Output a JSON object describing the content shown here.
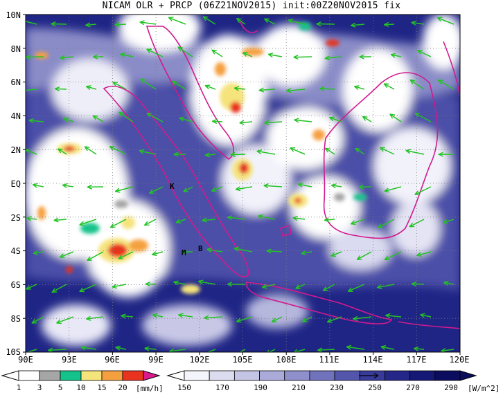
{
  "title": "NICAM OLR + PRCP (06Z21NOV2015) init:00Z20NOV2015 fix",
  "axes": {
    "lat_labels": [
      "10N",
      "8N",
      "6N",
      "4N",
      "2N",
      "EQ",
      "2S",
      "4S",
      "6S",
      "8S",
      "10S"
    ],
    "lat_values": [
      10,
      8,
      6,
      4,
      2,
      0,
      -2,
      -4,
      -6,
      -8,
      -10
    ],
    "lon_labels": [
      "90E",
      "93E",
      "96E",
      "99E",
      "102E",
      "105E",
      "108E",
      "111E",
      "114E",
      "117E",
      "120E"
    ],
    "lon_values": [
      90,
      93,
      96,
      99,
      102,
      105,
      108,
      111,
      114,
      117,
      120
    ],
    "lat_range": [
      -10,
      10
    ],
    "lon_range": [
      90,
      120
    ]
  },
  "stations": [
    {
      "label": "K",
      "lon": 100.4,
      "lat": -0.2
    },
    {
      "label": "M",
      "lon": 101.7,
      "lat": -4.0
    },
    {
      "label": "B",
      "lon": 102.3,
      "lat": -3.8
    }
  ],
  "precip_colorbar": {
    "unit": "[mm/h]",
    "labels": [
      "1",
      "3",
      "5",
      "10",
      "15",
      "20"
    ],
    "colors": [
      "#a6a6a6",
      "#15c38a",
      "#f5e37c",
      "#f5a040",
      "#e8331e",
      "#d81a8e"
    ]
  },
  "olr_colorbar": {
    "unit": "[W/m^2]",
    "labels": [
      "150",
      "170",
      "190",
      "210",
      "230",
      "250",
      "270",
      "290"
    ],
    "colors": [
      "#f4f4fb",
      "#dcdcef",
      "#c4c4e4",
      "#aaabd8",
      "#8e8fcb",
      "#7073bc",
      "#5356ab",
      "#383b9a",
      "#242787",
      "#151874",
      "#0b0e5e"
    ]
  },
  "colors": {
    "background": "#ffffff",
    "coastline": "#d21a8e",
    "wind_vector": "#22c322",
    "grid": "#7b7b7b"
  }
}
